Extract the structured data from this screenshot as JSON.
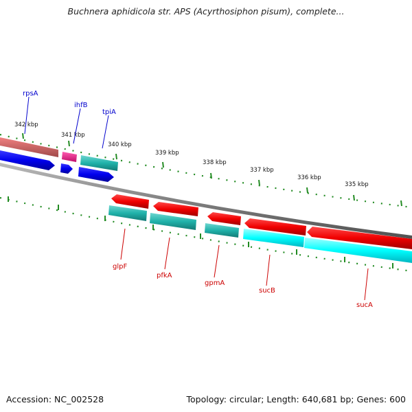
{
  "title": "Buchnera aphidicola str. APS (Acyrthosiphon pisum), complete...",
  "footer": {
    "accession": "Accession: NC_002528",
    "summary": "Topology: circular; Length: 640,681 bp; Genes: 600"
  },
  "colors": {
    "forward_rna_track": "#f08080",
    "forward_cds": "#0000ff",
    "reverse_cds": "#ff0000",
    "teal_cds": "#20b2aa",
    "cyan_cds": "#00ffff",
    "magenta_cds": "#ff1493",
    "backbone": "#808080",
    "tick": "#228b22",
    "forward_label": "#0000cd",
    "reverse_label": "#cc0000"
  },
  "ticks": [
    {
      "label": "342 kbp"
    },
    {
      "label": "341 kbp"
    },
    {
      "label": "340 kbp"
    },
    {
      "label": "339 kbp"
    },
    {
      "label": "338 kbp"
    },
    {
      "label": "337 kbp"
    },
    {
      "label": "336 kbp"
    },
    {
      "label": "335 kbp"
    }
  ],
  "forward_genes": [
    {
      "name": "rpsA"
    },
    {
      "name": "ihfB"
    },
    {
      "name": "tpiA"
    }
  ],
  "reverse_genes": [
    {
      "name": "glpF"
    },
    {
      "name": "pfkA"
    },
    {
      "name": "gpmA"
    },
    {
      "name": "sucB"
    },
    {
      "name": "sucA"
    }
  ]
}
